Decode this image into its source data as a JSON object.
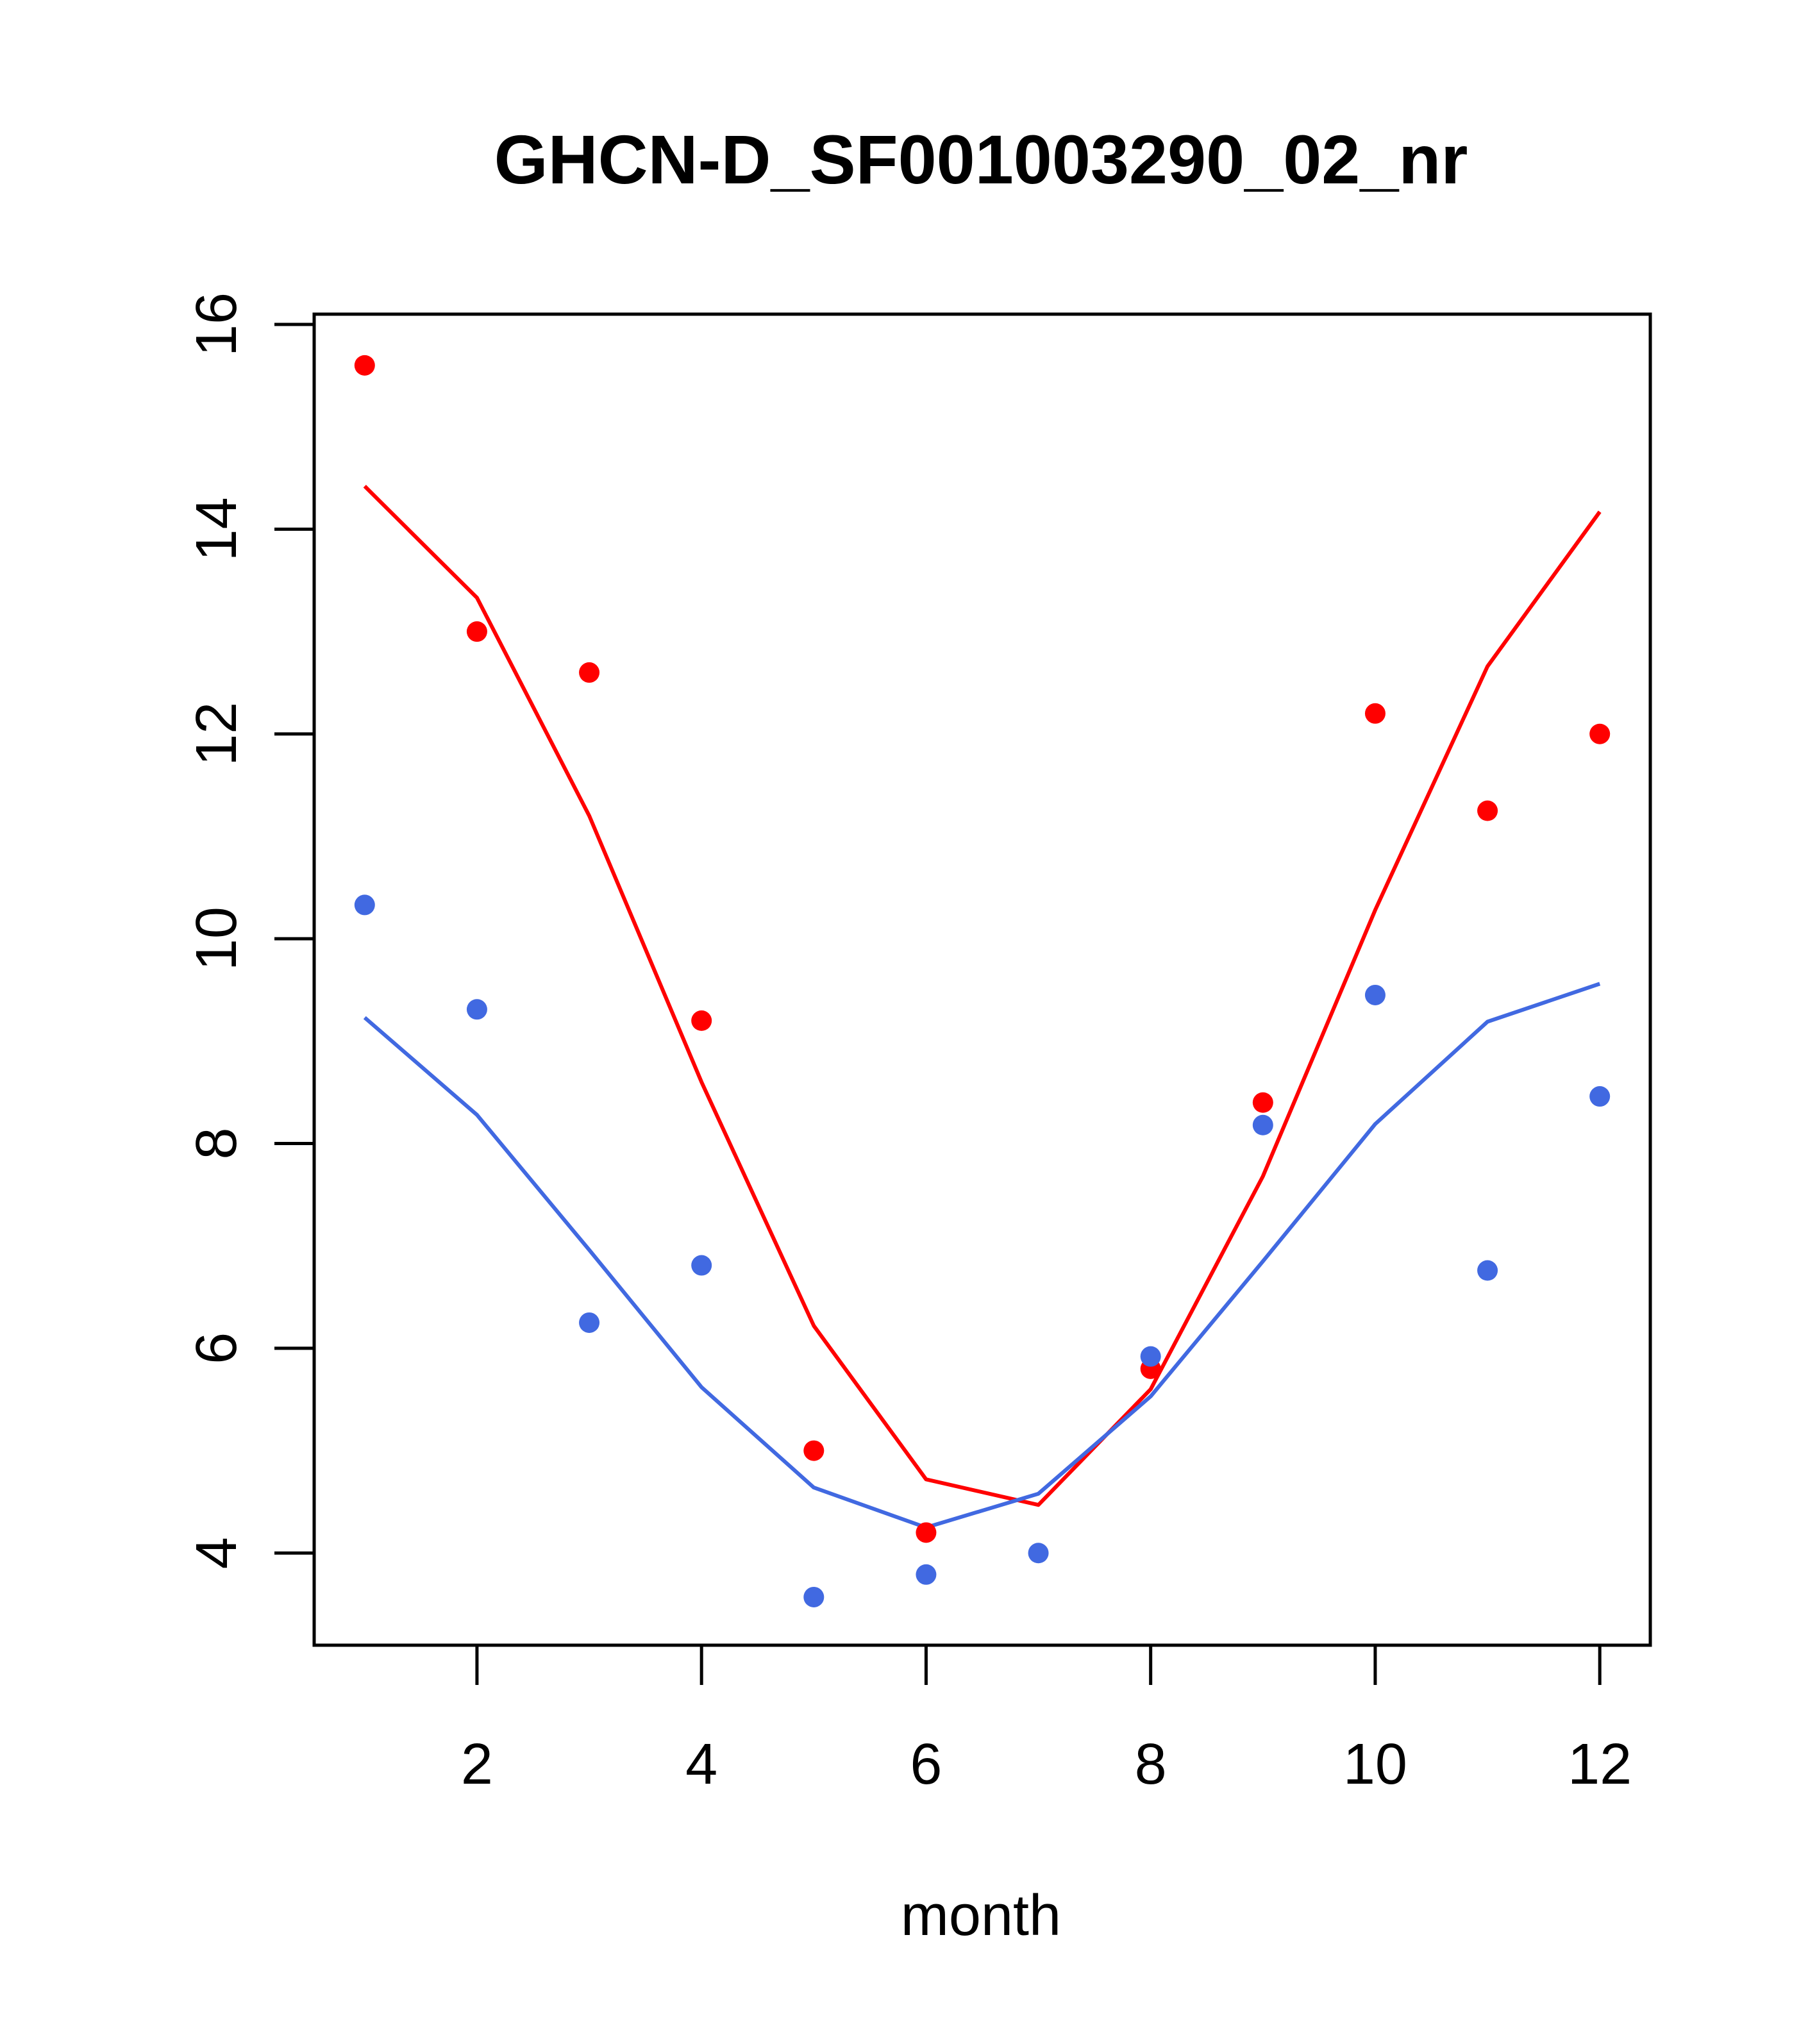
{
  "chart_data": {
    "type": "scatter",
    "title": "GHCN-D_SF001003290_02_nr",
    "xlabel": "month",
    "ylabel": "",
    "xlim": [
      0.55,
      12.45
    ],
    "ylim": [
      3.1,
      16.1
    ],
    "xticks": [
      2,
      4,
      6,
      8,
      10,
      12
    ],
    "yticks": [
      4,
      6,
      8,
      10,
      12,
      14,
      16
    ],
    "grid": false,
    "legend": "none",
    "points": [
      {
        "color": "#ff0000",
        "x": [
          1,
          2,
          3,
          4,
          5,
          6,
          8,
          9,
          10,
          11,
          12
        ],
        "y": [
          15.6,
          13.0,
          12.6,
          9.2,
          5.0,
          4.2,
          5.8,
          8.4,
          12.2,
          11.25,
          12.0
        ]
      },
      {
        "color": "#4169e1",
        "x": [
          1,
          2,
          3,
          4,
          5,
          6,
          7,
          8,
          9,
          10,
          11,
          12
        ],
        "y": [
          10.33,
          9.31,
          6.25,
          6.81,
          3.57,
          3.79,
          4.0,
          5.92,
          8.18,
          9.45,
          6.76,
          8.46
        ]
      }
    ],
    "lines": [
      {
        "color": "#ff0000",
        "x": [
          1,
          2,
          3,
          4,
          5,
          6,
          7,
          8,
          9,
          10,
          11,
          12
        ],
        "y": [
          14.42,
          13.33,
          11.2,
          8.6,
          6.22,
          4.72,
          4.47,
          5.6,
          7.68,
          10.28,
          12.66,
          14.17
        ]
      },
      {
        "color": "#4169e1",
        "x": [
          1,
          2,
          3,
          4,
          5,
          6,
          7,
          8,
          9,
          10,
          11,
          12
        ],
        "y": [
          9.23,
          8.28,
          6.96,
          5.62,
          4.64,
          4.25,
          4.58,
          5.53,
          6.85,
          8.19,
          9.19,
          9.56
        ]
      }
    ]
  }
}
